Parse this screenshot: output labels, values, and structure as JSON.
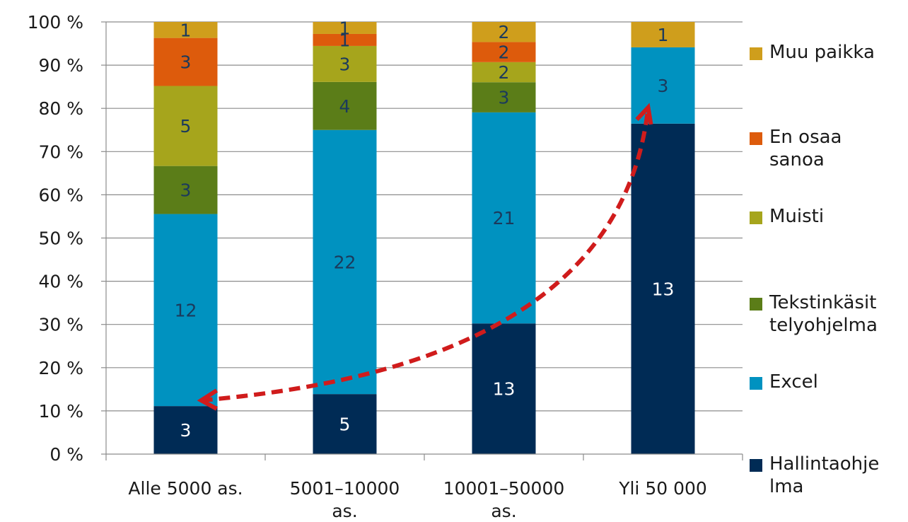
{
  "chart_data": {
    "type": "bar",
    "stacked": true,
    "normalized": true,
    "categories": [
      "Alle 5000 as.",
      "5001–10000\nas.",
      "10001–50000\nas.",
      "Yli 50 000"
    ],
    "series": [
      {
        "name": "Hallintaohje\nlma",
        "color": "#002b55",
        "label_color": "#ffffff",
        "values": [
          3,
          5,
          13,
          13
        ]
      },
      {
        "name": "Excel",
        "color": "#0092c0",
        "label_color": "#1b3a5c",
        "values": [
          12,
          22,
          21,
          3
        ]
      },
      {
        "name": "Tekstinkäsit\ntelyohjelma",
        "color": "#5b7d18",
        "label_color": "#1b3a5c",
        "values": [
          3,
          4,
          3,
          0
        ]
      },
      {
        "name": "Muisti",
        "color": "#a6a51c",
        "label_color": "#1b3a5c",
        "values": [
          5,
          3,
          2,
          0
        ]
      },
      {
        "name": "En osaa\nsanoa",
        "color": "#dd5b0c",
        "label_color": "#1b3a5c",
        "values": [
          3,
          1,
          2,
          0
        ]
      },
      {
        "name": "Muu paikka",
        "color": "#cf9e1c",
        "label_color": "#1b3a5c",
        "values": [
          1,
          1,
          2,
          1
        ]
      }
    ],
    "yticks": [
      "0 %",
      "10 %",
      "20 %",
      "30 %",
      "40 %",
      "50 %",
      "60 %",
      "70 %",
      "80 %",
      "90 %",
      "100 %"
    ],
    "ylim": [
      0,
      100
    ],
    "grid": true,
    "legend_position": "right",
    "annotation": {
      "type": "dashed double-headed arrow",
      "color": "#d01c1c",
      "from_category": "Alle 5000 as.",
      "to_category": "Yli 50 000"
    }
  }
}
